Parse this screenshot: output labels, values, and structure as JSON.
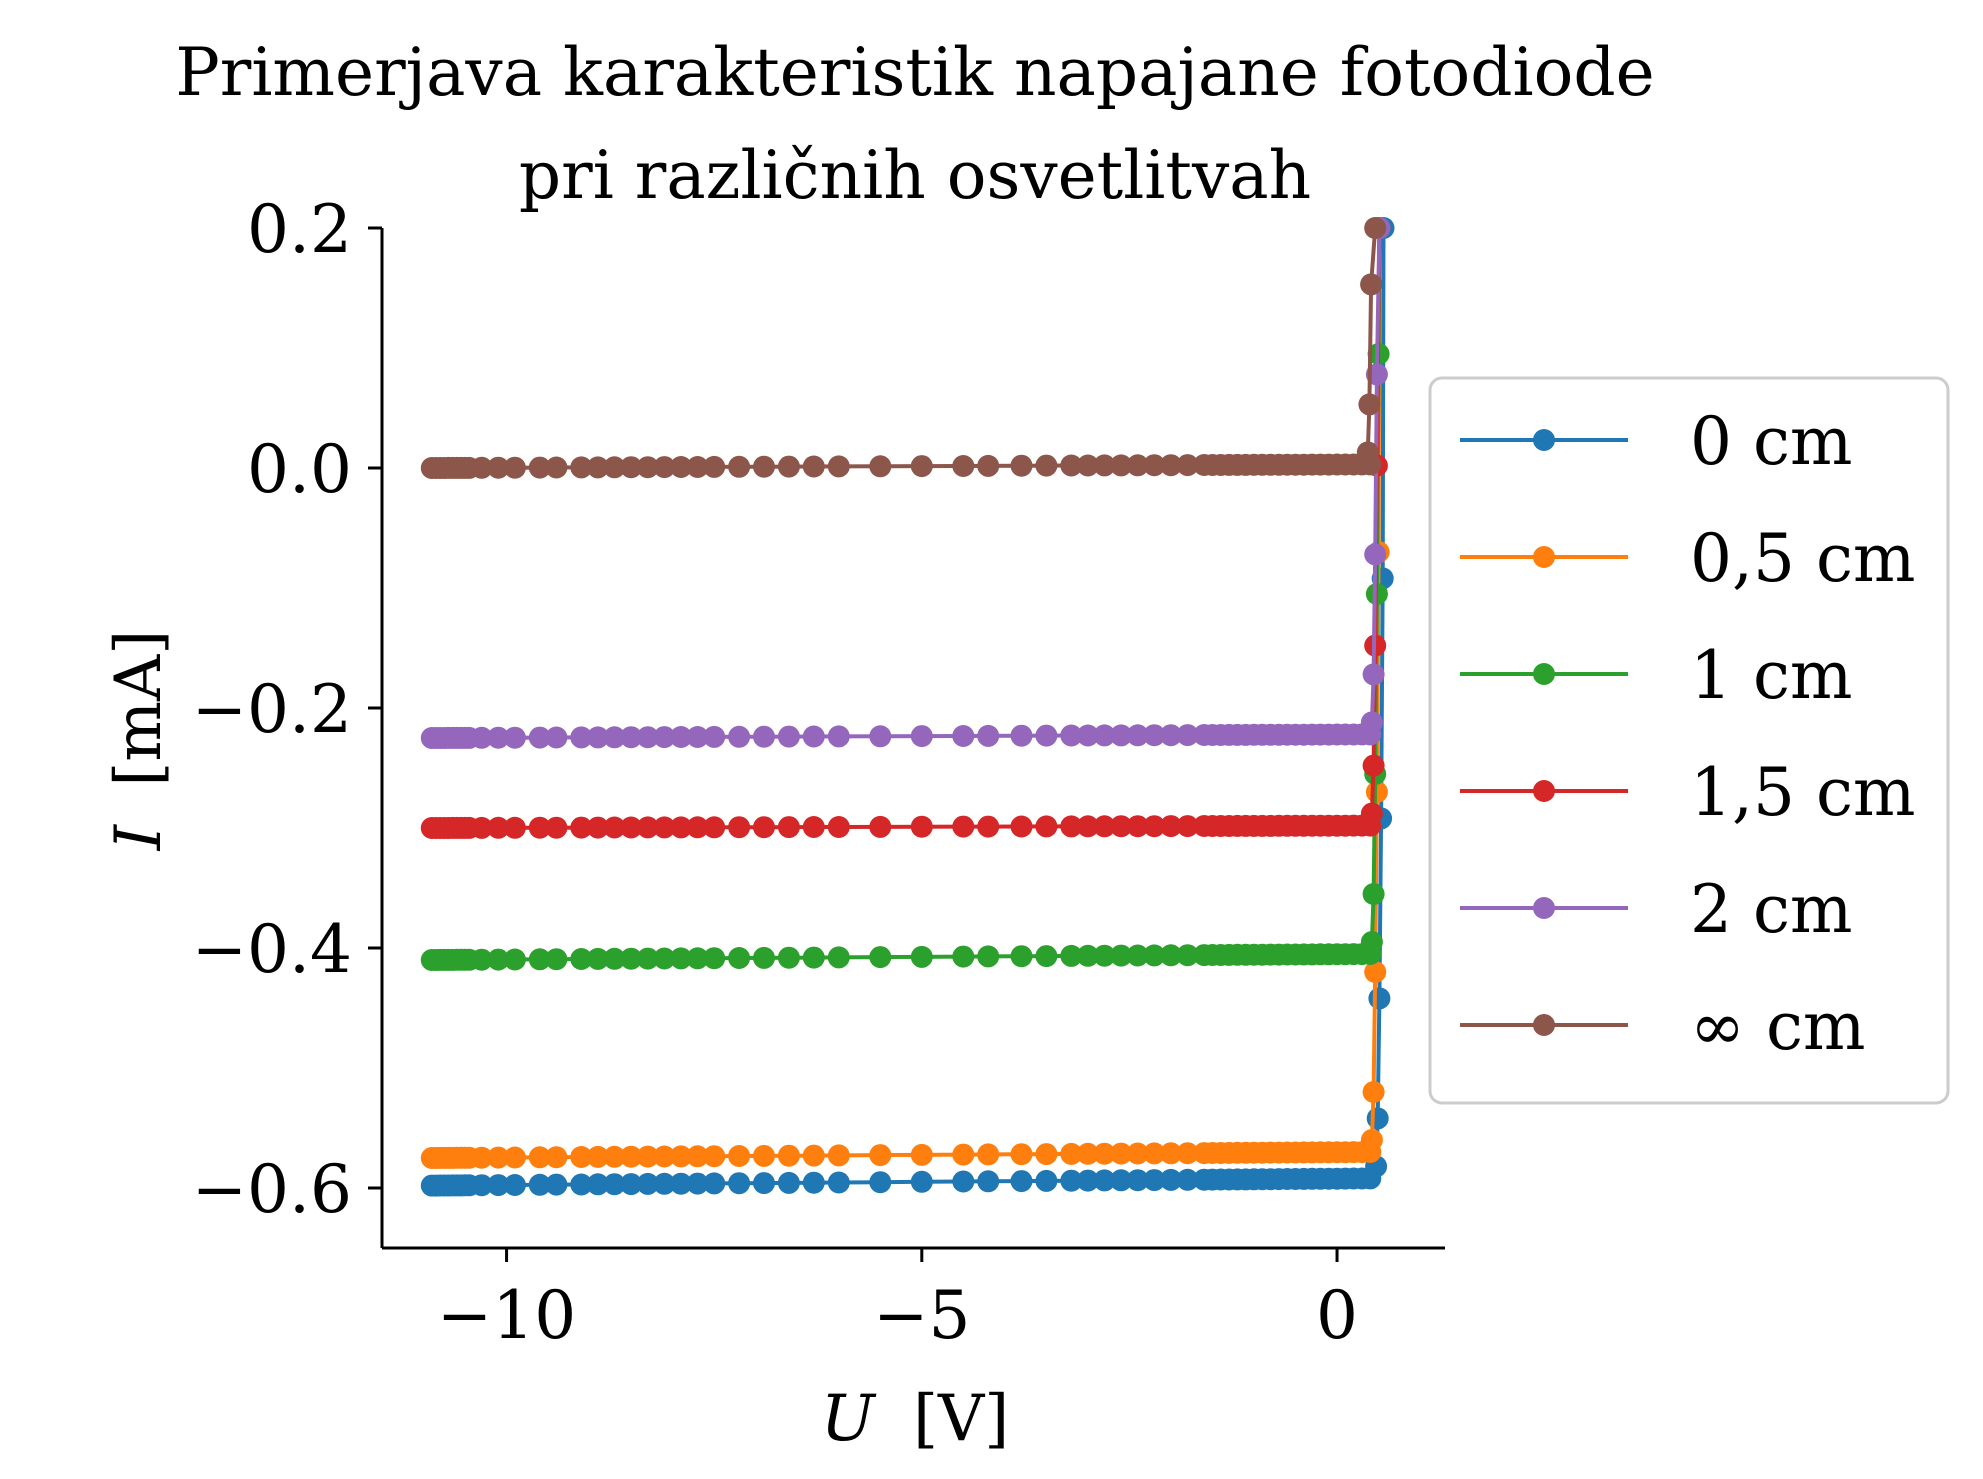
{
  "chart_data": {
    "type": "line",
    "title_line1": "Primerjava karakteristik napajane fotodiode",
    "title_line2": "pri različnih osvetlitvah",
    "xlabel_var": "U",
    "xlabel_unit": "[V]",
    "ylabel_var": "I",
    "ylabel_unit": "[mA]",
    "xlim": [
      -11.5,
      1.3
    ],
    "ylim": [
      -0.65,
      0.2
    ],
    "xticks": [
      -10,
      -5,
      0
    ],
    "xtick_labels": [
      "−10",
      "−5",
      "0"
    ],
    "yticks": [
      -0.6,
      -0.4,
      -0.2,
      0.0,
      0.2
    ],
    "ytick_labels": [
      "−0.6",
      "−0.4",
      "−0.2",
      "0.0",
      "0.2"
    ],
    "grid": false,
    "legend_position": "center-right outside",
    "series": [
      {
        "name": "0 cm",
        "color": "#1f77b4",
        "i_sat": -0.598,
        "i_end": -0.592,
        "knee_u": 0.45
      },
      {
        "name": "0,5 cm",
        "color": "#ff7f0e",
        "i_sat": -0.575,
        "i_end": -0.57,
        "knee_u": 0.4
      },
      {
        "name": "1 cm",
        "color": "#2ca02c",
        "i_sat": -0.41,
        "i_end": -0.405,
        "knee_u": 0.4
      },
      {
        "name": "1,5 cm",
        "color": "#d62728",
        "i_sat": -0.3,
        "i_end": -0.298,
        "knee_u": 0.4
      },
      {
        "name": "2 cm",
        "color": "#9467bd",
        "i_sat": -0.225,
        "i_end": -0.222,
        "knee_u": 0.4
      },
      {
        "name": "∞ cm",
        "color": "#8c564b",
        "i_sat": 0.0,
        "i_end": 0.003,
        "knee_u": 0.35
      }
    ],
    "u_points": [
      -10.9,
      -10.85,
      -10.8,
      -10.75,
      -10.7,
      -10.65,
      -10.6,
      -10.55,
      -10.5,
      -10.45,
      -10.3,
      -10.1,
      -9.9,
      -9.6,
      -9.4,
      -9.1,
      -8.9,
      -8.7,
      -8.5,
      -8.3,
      -8.1,
      -7.9,
      -7.7,
      -7.5,
      -7.2,
      -6.9,
      -6.6,
      -6.3,
      -6.0,
      -5.5,
      -5.0,
      -4.5,
      -4.2,
      -3.8,
      -3.5,
      -3.2,
      -3.0,
      -2.8,
      -2.6,
      -2.4,
      -2.2,
      -2.0,
      -1.8,
      -1.6,
      -1.5,
      -1.4,
      -1.3,
      -1.2,
      -1.1,
      -1.0,
      -0.9,
      -0.8,
      -0.7,
      -0.6,
      -0.5,
      -0.4,
      -0.3,
      -0.2,
      -0.1,
      0.0,
      0.1,
      0.2,
      0.3,
      0.4
    ]
  }
}
